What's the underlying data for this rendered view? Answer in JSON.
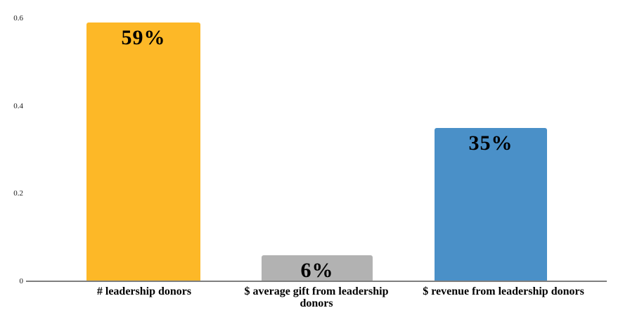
{
  "chart_data": {
    "type": "bar",
    "categories": [
      "# leadership donors",
      "$ average gift from leadership donors",
      "$ revenue from leadership donors"
    ],
    "values": [
      0.59,
      0.06,
      0.35
    ],
    "bar_labels": [
      "59%",
      "6%",
      "35%"
    ],
    "bar_colors": [
      "#FDB827",
      "#B2B2B2",
      "#4A90C8"
    ],
    "title": "",
    "xlabel": "",
    "ylabel": "",
    "ylim": [
      0,
      0.6
    ],
    "yticks": [
      0,
      0.2,
      0.4,
      0.6
    ],
    "ytick_labels": [
      "0",
      "0.2",
      "0.4",
      "0.6"
    ],
    "grid": false,
    "legend": false,
    "axis_line_color": "#7F7F7F",
    "value_label_color": "#000000",
    "background_color": "#FFFFFF"
  }
}
